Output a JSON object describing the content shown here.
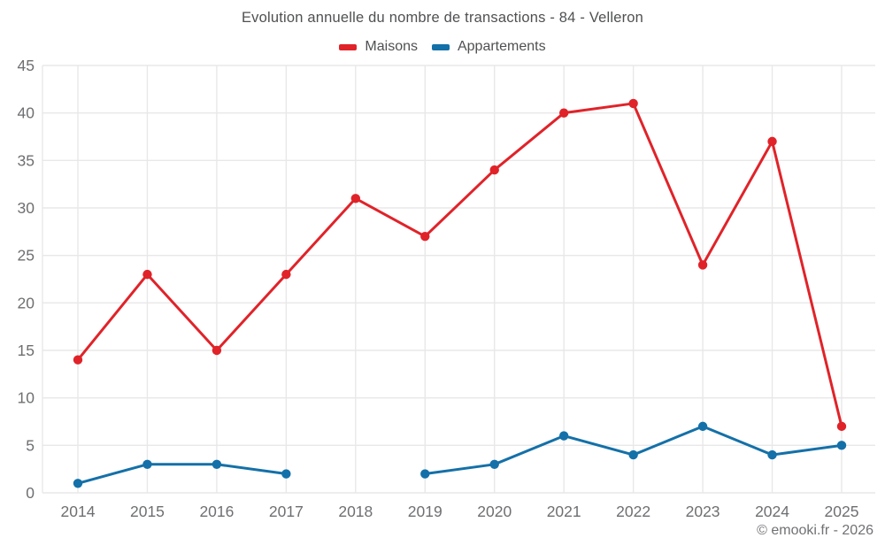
{
  "title": "Evolution annuelle du nombre de transactions - 84 - Velleron",
  "footer": "© emooki.fr - 2026",
  "legend": [
    {
      "label": "Maisons",
      "color": "#e02329"
    },
    {
      "label": "Appartements",
      "color": "#1470a8"
    }
  ],
  "chart_data": {
    "type": "line",
    "title": "Evolution annuelle du nombre de transactions - 84 - Velleron",
    "x": [
      "2014",
      "2015",
      "2016",
      "2017",
      "2018",
      "2019",
      "2020",
      "2021",
      "2022",
      "2023",
      "2024",
      "2025"
    ],
    "series": [
      {
        "name": "Maisons",
        "color": "#e02329",
        "values": [
          14,
          23,
          15,
          23,
          31,
          27,
          34,
          40,
          41,
          24,
          37,
          7
        ]
      },
      {
        "name": "Appartements",
        "color": "#1470a8",
        "values": [
          1,
          3,
          3,
          2,
          null,
          2,
          3,
          6,
          4,
          7,
          4,
          5
        ]
      }
    ],
    "xlabel": "",
    "ylabel": "",
    "ylim": [
      0,
      45
    ],
    "ytick_step": 5,
    "grid": true,
    "legend_position": "top",
    "colors": {
      "grid": "#e8e8e8",
      "tick_text": "#6e6f72",
      "title_text": "#4f5052",
      "footer_text": "#707174",
      "background": "#ffffff"
    }
  }
}
